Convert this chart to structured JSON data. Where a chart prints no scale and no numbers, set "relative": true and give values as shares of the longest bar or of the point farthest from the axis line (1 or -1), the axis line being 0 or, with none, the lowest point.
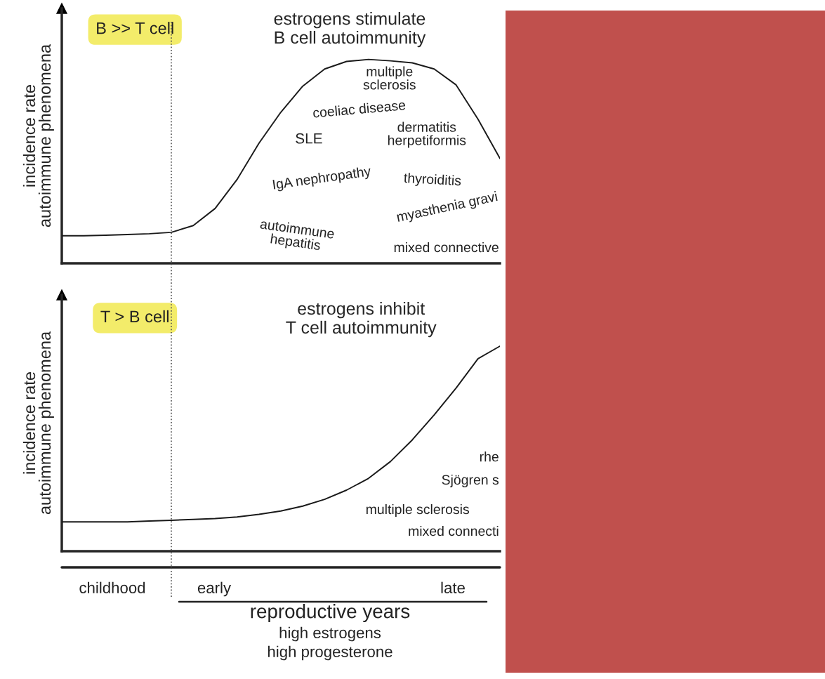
{
  "chart_data": [
    {
      "type": "line",
      "relative": true,
      "title": "estrogens stimulate\nB cell autoimmunity",
      "ylabel": "incidence rate\nautoimmune phenomena",
      "categories": [
        null,
        null,
        null,
        null,
        null,
        null,
        null,
        null,
        null,
        null,
        null,
        null,
        null,
        null,
        null,
        null,
        null,
        null,
        null,
        null,
        null
      ],
      "series": [
        {
          "color": "#1a1a1a",
          "values": [
            0.135,
            0.135,
            0.138,
            0.141,
            0.145,
            0.152,
            0.185,
            0.269,
            0.411,
            0.589,
            0.741,
            0.869,
            0.953,
            0.99,
            1,
            0.993,
            0.983,
            0.953,
            0.875,
            0.707,
            0.515
          ]
        }
      ],
      "annotations": [
        "B >> T cell",
        "multiple\nsclerosis",
        "coeliac disease",
        "SLE",
        "dermatitis\nherpetiformis",
        "IgA nephropathy",
        "thyroiditis",
        "myasthenia gravi",
        "autoimmune\nhepatitis",
        "mixed connective"
      ]
    },
    {
      "type": "line",
      "relative": true,
      "title": "estrogens inhibit\nT cell autoimmunity",
      "ylabel": "incidence rate\nautoimmune phenomena",
      "categories": [
        null,
        null,
        null,
        null,
        null,
        null,
        null,
        null,
        null,
        null,
        null,
        null,
        null,
        null,
        null,
        null,
        null,
        null,
        null,
        null,
        null
      ],
      "series": [
        {
          "color": "#1a1a1a",
          "values": [
            0.143,
            0.143,
            0.143,
            0.143,
            0.147,
            0.151,
            0.155,
            0.159,
            0.167,
            0.18,
            0.196,
            0.22,
            0.253,
            0.298,
            0.355,
            0.437,
            0.543,
            0.665,
            0.796,
            0.939,
            1
          ]
        }
      ],
      "annotations": [
        "T > B cell",
        "rhe",
        "Sjögren s",
        "multiple sclerosis",
        "mixed connecti",
        "childhood",
        "early",
        "late",
        "reproductive years",
        "high estrogens",
        "high progesterone"
      ]
    }
  ]
}
